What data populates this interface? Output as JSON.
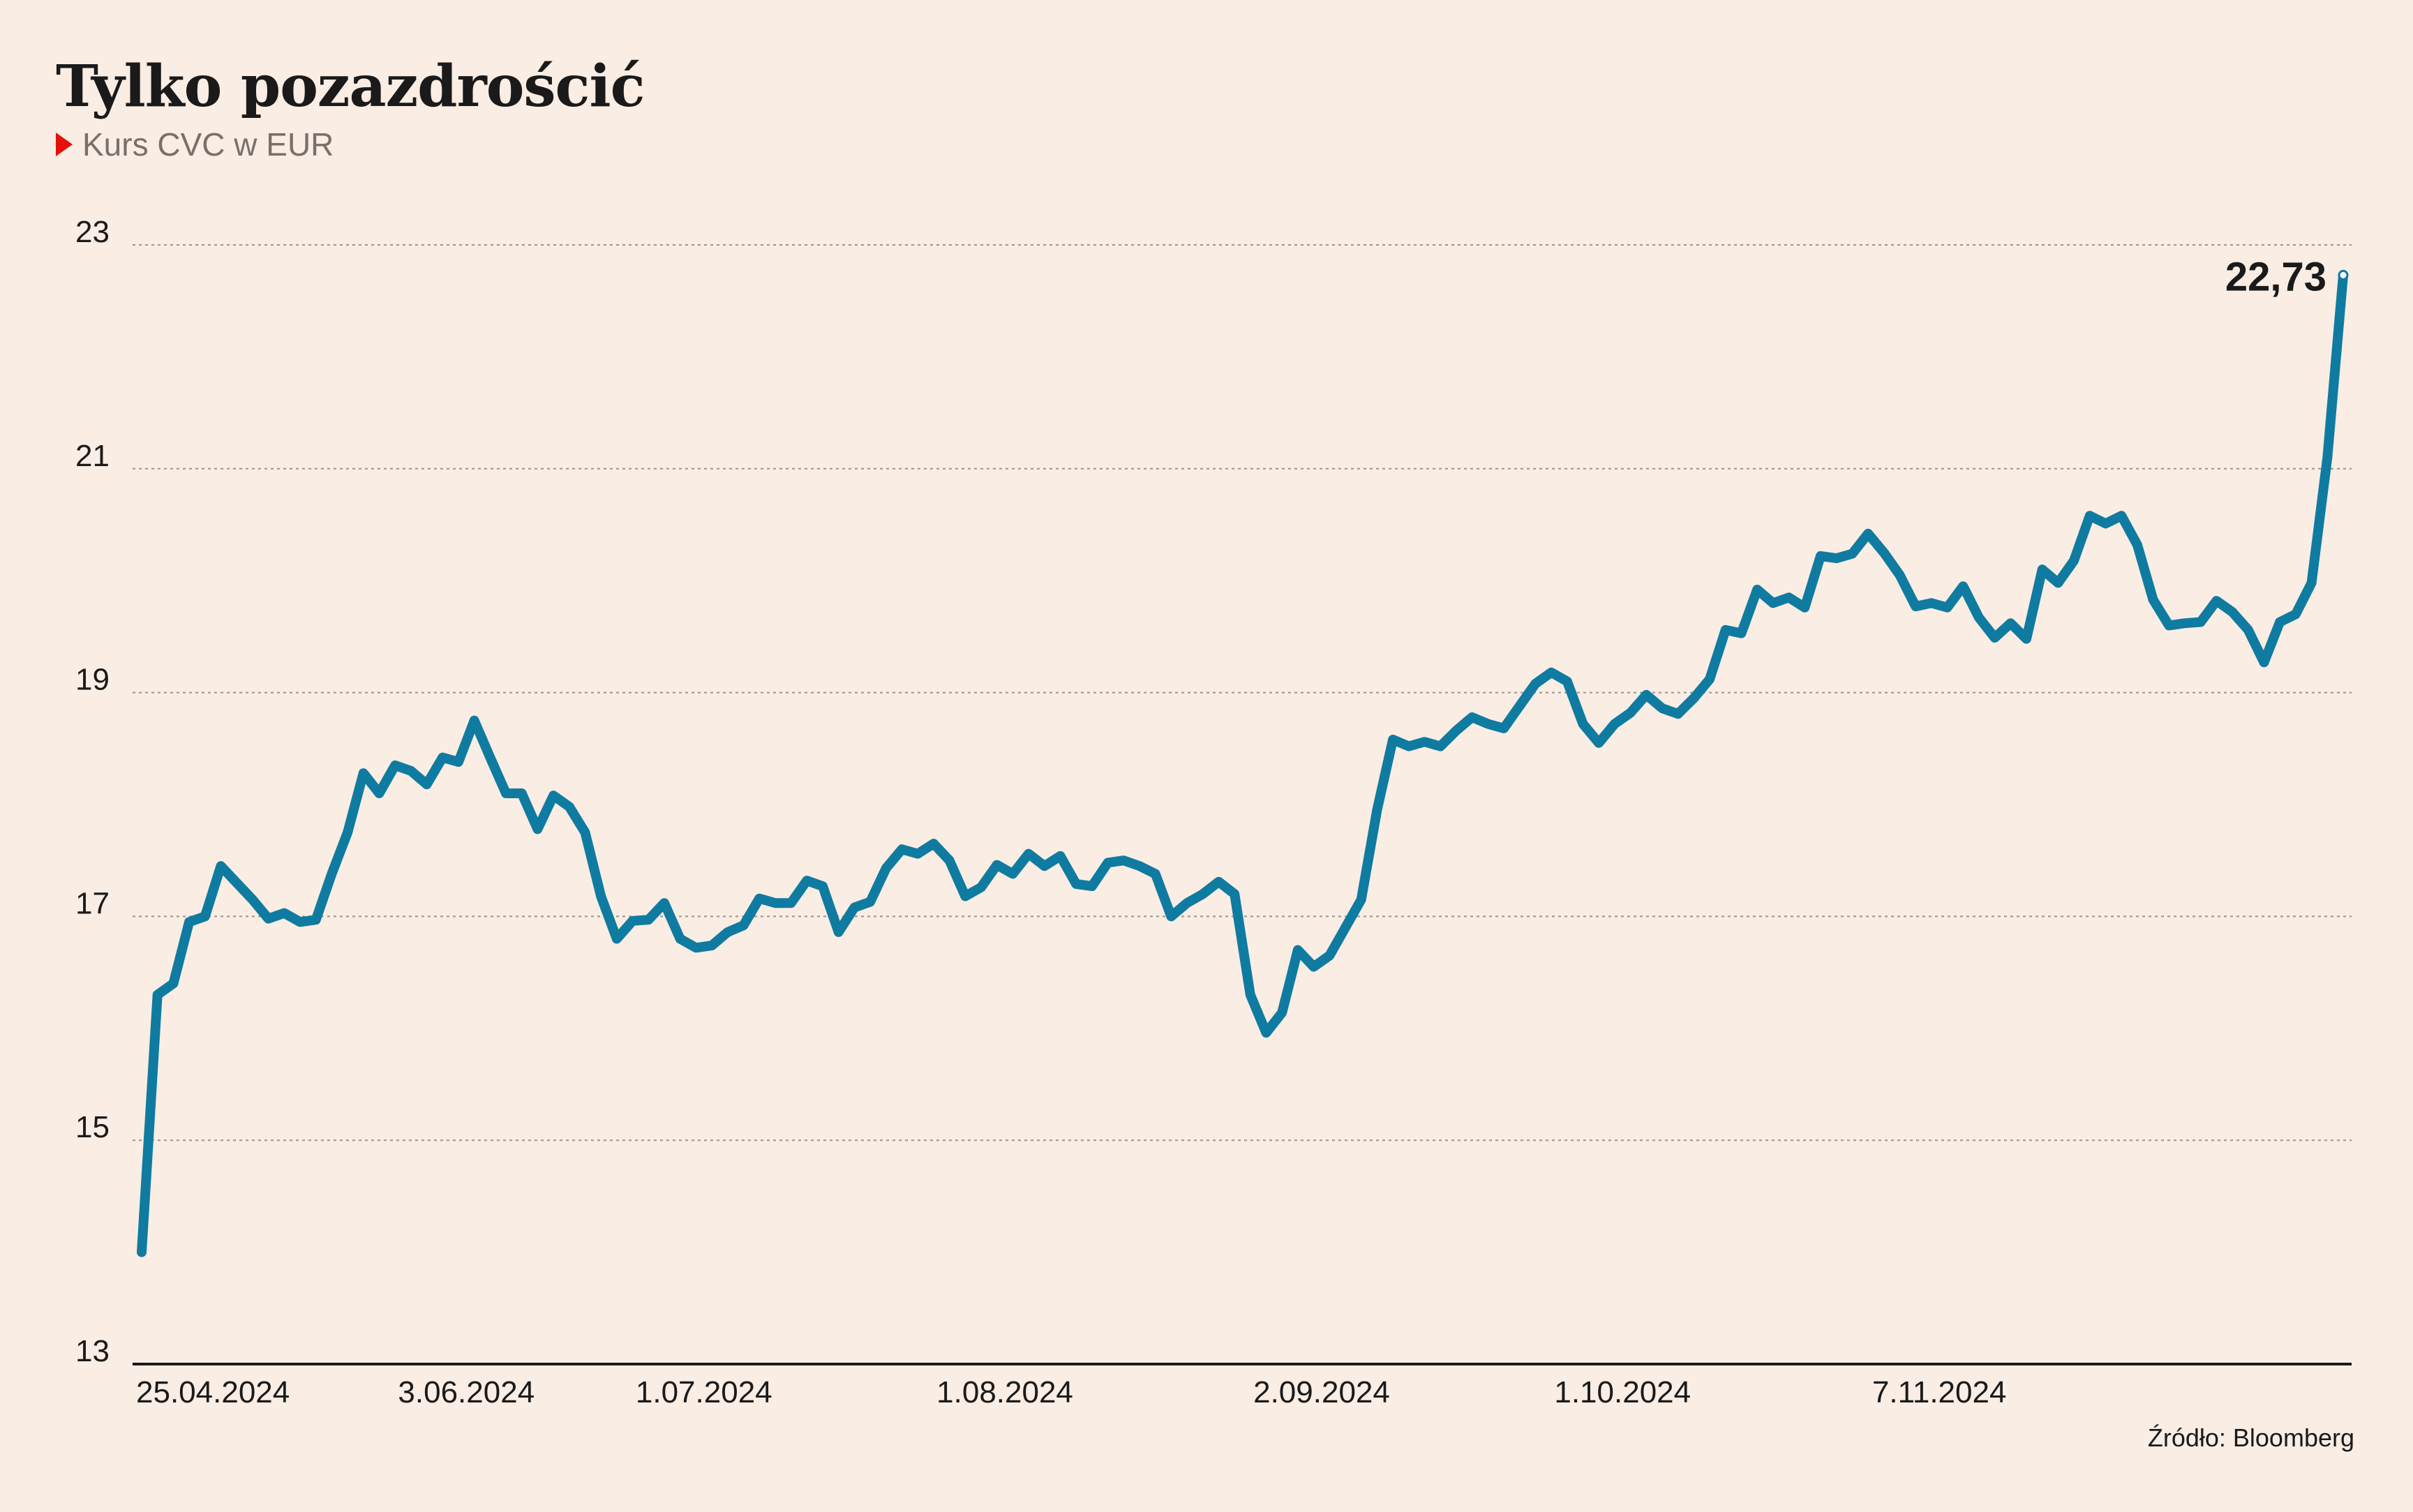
{
  "header": {
    "title": "Tylko pozazdrościć",
    "subtitle": "Kurs CVC w EUR"
  },
  "footer": {
    "source": "Źródło: Bloomberg"
  },
  "colors": {
    "background": "#f9ede4",
    "line": "#107ba0",
    "marker": "#e3120b",
    "grid": "#9a948f",
    "axis": "#1a1a1a"
  },
  "chart_data": {
    "type": "line",
    "title": "Tylko pozazdrościć",
    "subtitle": "Kurs CVC w EUR",
    "ylim": [
      13,
      23
    ],
    "yticks": [
      13,
      15,
      17,
      19,
      21,
      23
    ],
    "grid": true,
    "xtick_labels": [
      "25.04.2024",
      "3.06.2024",
      "1.07.2024",
      "1.08.2024",
      "2.09.2024",
      "1.10.2024",
      "7.11.2024"
    ],
    "xtick_index": [
      4.5,
      20.5,
      35.5,
      54.5,
      74.5,
      93.5,
      113.5
    ],
    "end_label": "22,73",
    "series": [
      {
        "values": [
          14.0,
          16.3,
          16.4,
          16.95,
          17.0,
          17.45,
          17.3,
          17.15,
          16.98,
          17.03,
          16.95,
          16.97,
          17.38,
          17.75,
          18.28,
          18.1,
          18.35,
          18.3,
          18.18,
          18.42,
          18.38,
          18.75,
          18.42,
          18.1,
          18.1,
          17.78,
          18.08,
          17.98,
          17.75,
          17.18,
          16.8,
          16.96,
          16.97,
          17.12,
          16.8,
          16.72,
          16.74,
          16.86,
          16.92,
          17.16,
          17.12,
          17.12,
          17.32,
          17.27,
          16.86,
          17.08,
          17.13,
          17.43,
          17.6,
          17.56,
          17.65,
          17.5,
          17.18,
          17.26,
          17.46,
          17.38,
          17.56,
          17.45,
          17.54,
          17.29,
          17.27,
          17.48,
          17.5,
          17.45,
          17.38,
          17.0,
          17.12,
          17.2,
          17.31,
          17.2,
          16.3,
          15.96,
          16.14,
          16.7,
          16.55,
          16.65,
          16.9,
          17.15,
          17.95,
          18.58,
          18.52,
          18.56,
          18.52,
          18.66,
          18.78,
          18.72,
          18.68,
          18.88,
          19.08,
          19.18,
          19.1,
          18.72,
          18.55,
          18.72,
          18.82,
          18.98,
          18.86,
          18.81,
          18.95,
          19.12,
          19.56,
          19.53,
          19.92,
          19.8,
          19.85,
          19.76,
          20.22,
          20.2,
          20.24,
          20.42,
          20.25,
          20.05,
          19.77,
          19.8,
          19.76,
          19.95,
          19.67,
          19.49,
          19.62,
          19.48,
          20.1,
          19.98,
          20.18,
          20.58,
          20.51,
          20.58,
          20.32,
          19.83,
          19.6,
          19.62,
          19.63,
          19.82,
          19.72,
          19.56,
          19.27,
          19.63,
          19.7,
          19.98,
          21.1,
          22.73
        ]
      }
    ]
  }
}
